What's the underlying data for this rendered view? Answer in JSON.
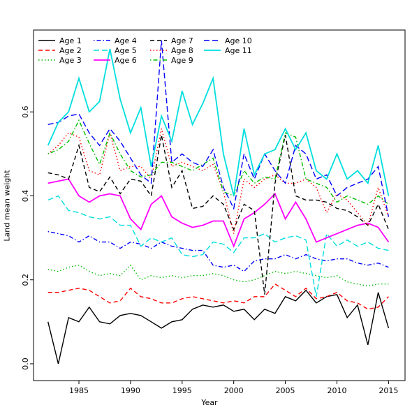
{
  "figure": {
    "background": "#ffffff"
  },
  "chart_data": {
    "type": "line",
    "title": "",
    "xlabel": "Year",
    "ylabel": "Land mean weight",
    "xlim": [
      1980.6,
      2016.6
    ],
    "ylim": [
      -0.04,
      0.795
    ],
    "xticks": [
      1985,
      1990,
      1995,
      2000,
      2005,
      2010,
      2015
    ],
    "yticks": [
      0.0,
      0.2,
      0.4,
      0.6
    ],
    "grid": false,
    "legend_position": "top-left",
    "legend_columns": 4,
    "x": [
      1982,
      1983,
      1984,
      1985,
      1986,
      1987,
      1988,
      1989,
      1990,
      1991,
      1992,
      1993,
      1994,
      1995,
      1996,
      1997,
      1998,
      1999,
      2000,
      2001,
      2002,
      2003,
      2004,
      2005,
      2006,
      2007,
      2008,
      2009,
      2010,
      2011,
      2012,
      2013,
      2014,
      2015
    ],
    "series": [
      {
        "name": "Age 1",
        "color": "#000000",
        "linestyle": "solid",
        "width": 1.4,
        "values": [
          0.1,
          0.0,
          0.11,
          0.1,
          0.135,
          0.1,
          0.095,
          0.115,
          0.12,
          0.115,
          0.1,
          0.085,
          0.1,
          0.105,
          0.13,
          0.14,
          0.135,
          0.14,
          0.125,
          0.13,
          0.105,
          0.13,
          0.12,
          0.16,
          0.15,
          0.175,
          0.145,
          0.16,
          0.165,
          0.11,
          0.14,
          0.045,
          0.17,
          0.085
        ]
      },
      {
        "name": "Age 2",
        "color": "#ff0000",
        "linestyle": "dashed",
        "width": 1.4,
        "values": [
          0.17,
          0.17,
          0.175,
          0.18,
          0.175,
          0.16,
          0.145,
          0.15,
          0.18,
          0.16,
          0.155,
          0.145,
          0.145,
          0.155,
          0.16,
          0.155,
          0.15,
          0.145,
          0.15,
          0.145,
          0.16,
          0.16,
          0.19,
          0.175,
          0.16,
          0.18,
          0.155,
          0.16,
          0.17,
          0.15,
          0.145,
          0.13,
          0.135,
          0.16
        ]
      },
      {
        "name": "Age 3",
        "color": "#00c000",
        "linestyle": "dotted",
        "width": 1.4,
        "values": [
          0.225,
          0.22,
          0.23,
          0.235,
          0.22,
          0.21,
          0.215,
          0.21,
          0.235,
          0.2,
          0.21,
          0.205,
          0.21,
          0.205,
          0.21,
          0.21,
          0.215,
          0.21,
          0.2,
          0.195,
          0.2,
          0.21,
          0.22,
          0.215,
          0.22,
          0.215,
          0.21,
          0.205,
          0.21,
          0.195,
          0.19,
          0.185,
          0.19,
          0.19
        ]
      },
      {
        "name": "Age 4",
        "color": "#0000ff",
        "linestyle": "dashdot",
        "width": 1.4,
        "values": [
          0.315,
          0.31,
          0.305,
          0.29,
          0.305,
          0.29,
          0.29,
          0.275,
          0.29,
          0.285,
          0.275,
          0.29,
          0.28,
          0.275,
          0.27,
          0.27,
          0.235,
          0.23,
          0.235,
          0.22,
          0.245,
          0.25,
          0.25,
          0.26,
          0.25,
          0.26,
          0.25,
          0.245,
          0.25,
          0.25,
          0.24,
          0.235,
          0.24,
          0.23
        ]
      },
      {
        "name": "Age 5",
        "color": "#00dede",
        "linestyle": "longdash",
        "width": 1.4,
        "values": [
          0.39,
          0.4,
          0.365,
          0.36,
          0.35,
          0.345,
          0.35,
          0.33,
          0.33,
          0.28,
          0.3,
          0.29,
          0.3,
          0.26,
          0.255,
          0.26,
          0.29,
          0.285,
          0.265,
          0.3,
          0.3,
          0.31,
          0.29,
          0.3,
          0.305,
          0.295,
          0.16,
          0.31,
          0.28,
          0.295,
          0.28,
          0.29,
          0.275,
          0.27
        ]
      },
      {
        "name": "Age 6",
        "color": "#ff00ff",
        "linestyle": "solid",
        "width": 1.8,
        "values": [
          0.43,
          0.435,
          0.44,
          0.4,
          0.385,
          0.4,
          0.405,
          0.4,
          0.345,
          0.32,
          0.38,
          0.4,
          0.35,
          0.335,
          0.325,
          0.33,
          0.34,
          0.34,
          0.28,
          0.345,
          0.36,
          0.38,
          0.405,
          0.345,
          0.385,
          0.345,
          0.29,
          0.3,
          0.31,
          0.32,
          0.33,
          0.335,
          0.325,
          0.29
        ]
      },
      {
        "name": "Age 7",
        "color": "#000000",
        "linestyle": "dashed",
        "width": 1.4,
        "values": [
          0.455,
          0.45,
          0.44,
          0.52,
          0.42,
          0.41,
          0.445,
          0.405,
          0.44,
          0.435,
          0.4,
          0.545,
          0.42,
          0.46,
          0.37,
          0.375,
          0.4,
          0.38,
          0.32,
          0.38,
          0.365,
          0.165,
          0.43,
          0.545,
          0.4,
          0.39,
          0.39,
          0.385,
          0.37,
          0.365,
          0.35,
          0.33,
          0.38,
          0.32
        ]
      },
      {
        "name": "Age 8",
        "color": "#ff0000",
        "linestyle": "dotted",
        "width": 1.4,
        "values": [
          0.5,
          0.52,
          0.55,
          0.54,
          0.46,
          0.45,
          0.55,
          0.46,
          0.47,
          0.47,
          0.44,
          0.56,
          0.47,
          0.48,
          0.47,
          0.46,
          0.475,
          0.41,
          0.31,
          0.44,
          0.42,
          0.44,
          0.45,
          0.43,
          0.43,
          0.44,
          0.42,
          0.36,
          0.405,
          0.39,
          0.36,
          0.33,
          0.42,
          0.35
        ]
      },
      {
        "name": "Age 9",
        "color": "#00c000",
        "linestyle": "dashdot",
        "width": 1.4,
        "values": [
          0.5,
          0.51,
          0.53,
          0.58,
          0.525,
          0.475,
          0.55,
          0.5,
          0.46,
          0.445,
          0.45,
          0.48,
          0.48,
          0.47,
          0.46,
          0.475,
          0.49,
          0.41,
          0.4,
          0.46,
          0.43,
          0.445,
          0.44,
          0.55,
          0.54,
          0.44,
          0.43,
          0.42,
          0.385,
          0.4,
          0.39,
          0.38,
          0.4,
          0.38
        ]
      },
      {
        "name": "Age 10",
        "color": "#0000ff",
        "linestyle": "longdash",
        "width": 1.4,
        "values": [
          0.57,
          0.575,
          0.59,
          0.595,
          0.55,
          0.52,
          0.56,
          0.53,
          0.49,
          0.45,
          0.43,
          0.77,
          0.48,
          0.5,
          0.48,
          0.47,
          0.51,
          0.42,
          0.37,
          0.5,
          0.44,
          0.5,
          0.46,
          0.43,
          0.52,
          0.5,
          0.44,
          0.45,
          0.4,
          0.42,
          0.43,
          0.44,
          0.47,
          0.35
        ]
      },
      {
        "name": "Age 11",
        "color": "#00dede",
        "linestyle": "solid",
        "width": 1.8,
        "values": [
          0.52,
          0.575,
          0.6,
          0.68,
          0.6,
          0.625,
          0.75,
          0.63,
          0.55,
          0.61,
          0.47,
          0.59,
          0.53,
          0.65,
          0.57,
          0.62,
          0.68,
          0.5,
          0.4,
          0.56,
          0.45,
          0.5,
          0.51,
          0.56,
          0.51,
          0.55,
          0.46,
          0.44,
          0.5,
          0.44,
          0.46,
          0.43,
          0.52,
          0.4
        ]
      }
    ]
  }
}
